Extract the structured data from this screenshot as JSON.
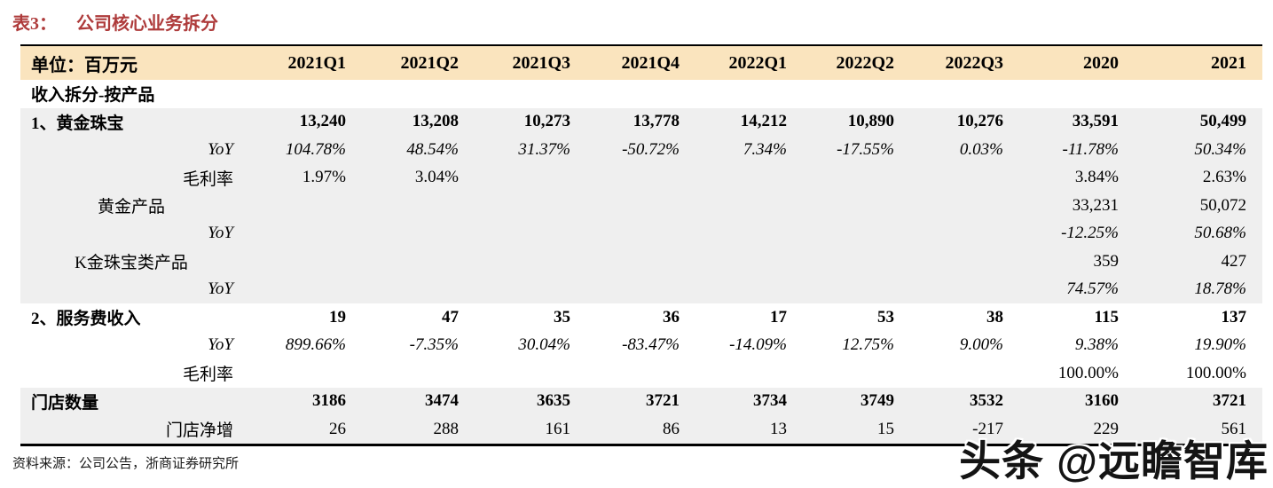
{
  "colors": {
    "accent_red": "#AE3B3B",
    "header_bg": "#FAE4BE",
    "shade_bg": "#EFEFEF"
  },
  "title": {
    "prefix": "表3：",
    "text": "公司核心业务拆分"
  },
  "table": {
    "unit_label": "单位：百万元",
    "columns": [
      "2021Q1",
      "2021Q2",
      "2021Q3",
      "2021Q4",
      "2022Q1",
      "2022Q2",
      "2022Q3",
      "2020",
      "2021"
    ],
    "rows": [
      {
        "label": "收入拆分-按产品",
        "label_style": "bold",
        "label_align": "left",
        "value_style": "normal",
        "shade": false,
        "values": [
          "",
          "",
          "",
          "",
          "",
          "",
          "",
          "",
          ""
        ]
      },
      {
        "label": "1、黄金珠宝",
        "label_style": "bold",
        "label_align": "left",
        "value_style": "bold",
        "shade": true,
        "values": [
          "13,240",
          "13,208",
          "10,273",
          "13,778",
          "14,212",
          "10,890",
          "10,276",
          "33,591",
          "50,499"
        ]
      },
      {
        "label": "YoY",
        "label_style": "italic",
        "label_align": "right",
        "value_style": "italic",
        "shade": true,
        "values": [
          "104.78%",
          "48.54%",
          "31.37%",
          "-50.72%",
          "7.34%",
          "-17.55%",
          "0.03%",
          "-11.78%",
          "50.34%"
        ]
      },
      {
        "label": "毛利率",
        "label_style": "normal",
        "label_align": "right",
        "value_style": "normal",
        "shade": true,
        "values": [
          "1.97%",
          "3.04%",
          "",
          "",
          "",
          "",
          "",
          "3.84%",
          "2.63%"
        ]
      },
      {
        "label": "黄金产品",
        "label_style": "normal",
        "label_align": "center",
        "value_style": "normal",
        "shade": true,
        "values": [
          "",
          "",
          "",
          "",
          "",
          "",
          "",
          "33,231",
          "50,072"
        ]
      },
      {
        "label": "YoY",
        "label_style": "italic",
        "label_align": "right",
        "value_style": "italic",
        "shade": true,
        "values": [
          "",
          "",
          "",
          "",
          "",
          "",
          "",
          "-12.25%",
          "50.68%"
        ]
      },
      {
        "label": "K金珠宝类产品",
        "label_style": "normal",
        "label_align": "center",
        "value_style": "normal",
        "shade": true,
        "values": [
          "",
          "",
          "",
          "",
          "",
          "",
          "",
          "359",
          "427"
        ]
      },
      {
        "label": "YoY",
        "label_style": "italic",
        "label_align": "right",
        "value_style": "italic",
        "shade": true,
        "values": [
          "",
          "",
          "",
          "",
          "",
          "",
          "",
          "74.57%",
          "18.78%"
        ]
      },
      {
        "label": "2、服务费收入",
        "label_style": "bold",
        "label_align": "left",
        "value_style": "bold",
        "shade": false,
        "values": [
          "19",
          "47",
          "35",
          "36",
          "17",
          "53",
          "38",
          "115",
          "137"
        ]
      },
      {
        "label": "YoY",
        "label_style": "italic",
        "label_align": "right",
        "value_style": "italic",
        "shade": false,
        "values": [
          "899.66%",
          "-7.35%",
          "30.04%",
          "-83.47%",
          "-14.09%",
          "12.75%",
          "9.00%",
          "9.38%",
          "19.90%"
        ]
      },
      {
        "label": "毛利率",
        "label_style": "normal",
        "label_align": "right",
        "value_style": "normal",
        "shade": false,
        "values": [
          "",
          "",
          "",
          "",
          "",
          "",
          "",
          "100.00%",
          "100.00%"
        ]
      },
      {
        "label": "门店数量",
        "label_style": "bold",
        "label_align": "left",
        "value_style": "bold",
        "shade": true,
        "values": [
          "3186",
          "3474",
          "3635",
          "3721",
          "3734",
          "3749",
          "3532",
          "3160",
          "3721"
        ]
      },
      {
        "label": "门店净增",
        "label_style": "normal",
        "label_align": "right",
        "value_style": "normal",
        "shade": true,
        "values": [
          "26",
          "288",
          "161",
          "86",
          "13",
          "15",
          "-217",
          "229",
          "561"
        ]
      }
    ]
  },
  "footer": {
    "source_text": "资料来源：公司公告，浙商证券研究所"
  },
  "watermark": {
    "text": "头条 @远瞻智库"
  }
}
